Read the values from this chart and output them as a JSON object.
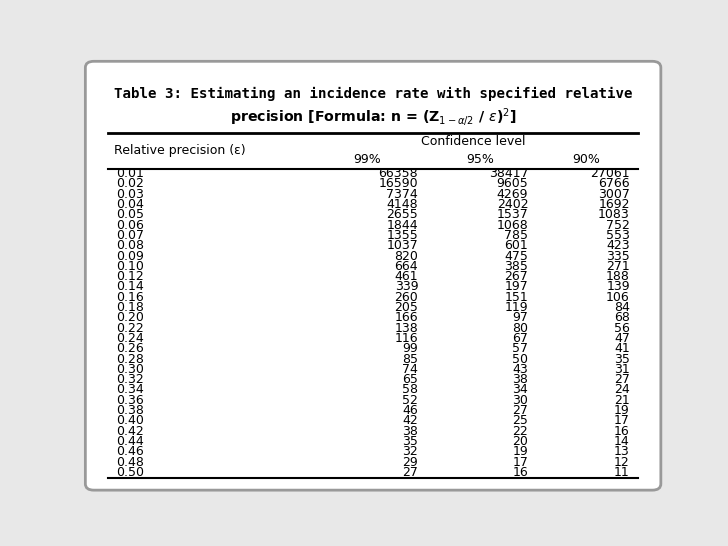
{
  "title_line1": "Table 3: Estimating an incidence rate with specified relative",
  "title_line2": "precision [Formula: n = (Z$_{1-\\alpha/2}$ / $\\varepsilon$)$^2$]",
  "col_header_1": "Relative precision (ε)",
  "col_header_2": "Confidence level",
  "col_99": "99%",
  "col_95": "95%",
  "col_90": "90%",
  "rows": [
    [
      "0.01",
      "66358",
      "38417",
      "27061"
    ],
    [
      "0.02",
      "16590",
      "9605",
      "6766"
    ],
    [
      "0.03",
      "7374",
      "4269",
      "3007"
    ],
    [
      "0.04",
      "4148",
      "2402",
      "1692"
    ],
    [
      "0.05",
      "2655",
      "1537",
      "1083"
    ],
    [
      "0.06",
      "1844",
      "1068",
      "752"
    ],
    [
      "0.07",
      "1355",
      "785",
      "553"
    ],
    [
      "0.08",
      "1037",
      "601",
      "423"
    ],
    [
      "0.09",
      "820",
      "475",
      "335"
    ],
    [
      "0.10",
      "664",
      "385",
      "271"
    ],
    [
      "0.12",
      "461",
      "267",
      "188"
    ],
    [
      "0.14",
      "339",
      "197",
      "139"
    ],
    [
      "0.16",
      "260",
      "151",
      "106"
    ],
    [
      "0.18",
      "205",
      "119",
      "84"
    ],
    [
      "0.20",
      "166",
      "97",
      "68"
    ],
    [
      "0.22",
      "138",
      "80",
      "56"
    ],
    [
      "0.24",
      "116",
      "67",
      "47"
    ],
    [
      "0.26",
      "99",
      "57",
      "41"
    ],
    [
      "0.28",
      "85",
      "50",
      "35"
    ],
    [
      "0.30",
      "74",
      "43",
      "31"
    ],
    [
      "0.32",
      "65",
      "38",
      "27"
    ],
    [
      "0.34",
      "58",
      "34",
      "24"
    ],
    [
      "0.36",
      "52",
      "30",
      "21"
    ],
    [
      "0.38",
      "46",
      "27",
      "19"
    ],
    [
      "0.40",
      "42",
      "25",
      "17"
    ],
    [
      "0.42",
      "38",
      "22",
      "16"
    ],
    [
      "0.44",
      "35",
      "20",
      "14"
    ],
    [
      "0.46",
      "32",
      "19",
      "13"
    ],
    [
      "0.48",
      "29",
      "17",
      "12"
    ],
    [
      "0.50",
      "27",
      "16",
      "11"
    ]
  ],
  "bg_color": "#e8e8e8",
  "table_bg": "#ffffff",
  "font_size": 9.0,
  "title_font_size": 10.2
}
